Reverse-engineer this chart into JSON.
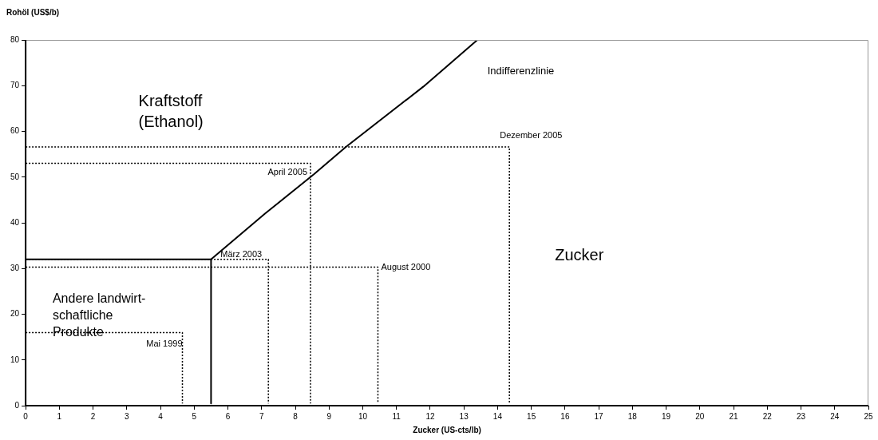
{
  "chart_data": {
    "type": "line",
    "xlabel": "Zucker (US-cts/lb)",
    "ylabel": "Rohöl (US$/b)",
    "xlim": [
      0,
      25
    ],
    "xticks": [
      0,
      1,
      2,
      3,
      4,
      5,
      6,
      7,
      8,
      9,
      10,
      11,
      12,
      13,
      14,
      15,
      16,
      17,
      18,
      19,
      20,
      21,
      22,
      23,
      24,
      25
    ],
    "ylim": [
      0,
      80
    ],
    "yticks": [
      0,
      10,
      20,
      30,
      40,
      50,
      60,
      70,
      80
    ],
    "grid": false,
    "legend": false,
    "marker": "none",
    "series": [
      {
        "color": "#000000",
        "line_style": "solid",
        "x": [
          5.5,
          7.1,
          8.55,
          9.5,
          11.8,
          13.4
        ],
        "values": [
          32,
          42,
          50.6,
          56.6,
          69.8,
          80
        ]
      },
      {
        "color": "#000000",
        "line_style": "solid",
        "x": [
          0,
          5.5,
          5.5
        ],
        "values": [
          32,
          32,
          0.5
        ]
      },
      {
        "color": "#000000",
        "line_style": "dotted",
        "x": [
          0,
          4.65,
          4.65
        ],
        "values": [
          16,
          16,
          0.5
        ]
      },
      {
        "color": "#000000",
        "line_style": "dotted",
        "x": [
          0,
          7.2,
          7.2
        ],
        "values": [
          32,
          32,
          0.5
        ]
      },
      {
        "color": "#000000",
        "line_style": "dotted",
        "x": [
          0,
          10.45,
          10.45
        ],
        "values": [
          30.3,
          30.3,
          0.5
        ]
      },
      {
        "color": "#000000",
        "line_style": "dotted",
        "x": [
          0,
          8.45,
          8.45
        ],
        "values": [
          53,
          53,
          0.5
        ]
      },
      {
        "color": "#000000",
        "line_style": "dotted",
        "x": [
          0,
          14.35,
          14.35
        ],
        "values": [
          56.6,
          56.6,
          0.5
        ]
      }
    ],
    "annotations": [
      "Indifferenzlinie",
      "Kraftstoff (Ethanol)",
      "Zucker",
      "Andere landwirt-schaftliche Produkte",
      {
        "text": "Mai 1999",
        "x": 4.65,
        "y": 16
      },
      {
        "text": "März 2003",
        "x": 7.2,
        "y": 32
      },
      {
        "text": "August 2000",
        "x": 10.45,
        "y": 30.3
      },
      {
        "text": "April 2005",
        "x": 8.45,
        "y": 53
      },
      {
        "text": "Dezember 2005",
        "x": 14.35,
        "y": 56.6
      }
    ]
  }
}
